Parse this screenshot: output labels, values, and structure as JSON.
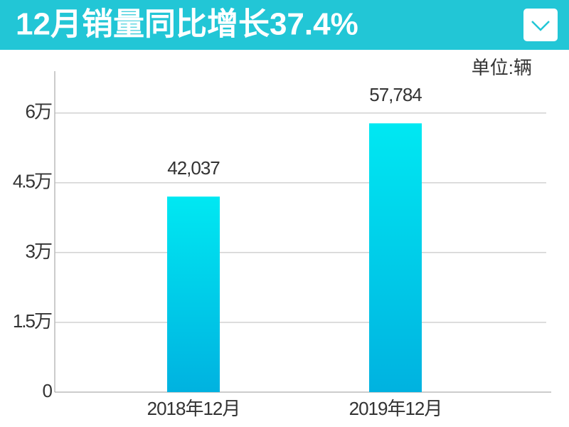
{
  "chart_data": {
    "type": "bar",
    "title": "12月销量同比增长37.4%",
    "unit_label": "单位:辆",
    "categories": [
      "2018年12月",
      "2019年12月"
    ],
    "values": [
      42037,
      57784
    ],
    "value_labels": [
      "42,037",
      "57,784"
    ],
    "color_top": "#00e8f2",
    "color_bottom": "#00b2e0",
    "ylim": [
      0,
      69000
    ],
    "yticks": [
      0,
      {
        "value": 15000,
        "label": "1.5万"
      },
      {
        "value": 30000,
        "label": "3万"
      },
      {
        "value": 45000,
        "label": "4.5万"
      },
      {
        "value": 60000,
        "label": "6万"
      }
    ],
    "grid": true
  }
}
